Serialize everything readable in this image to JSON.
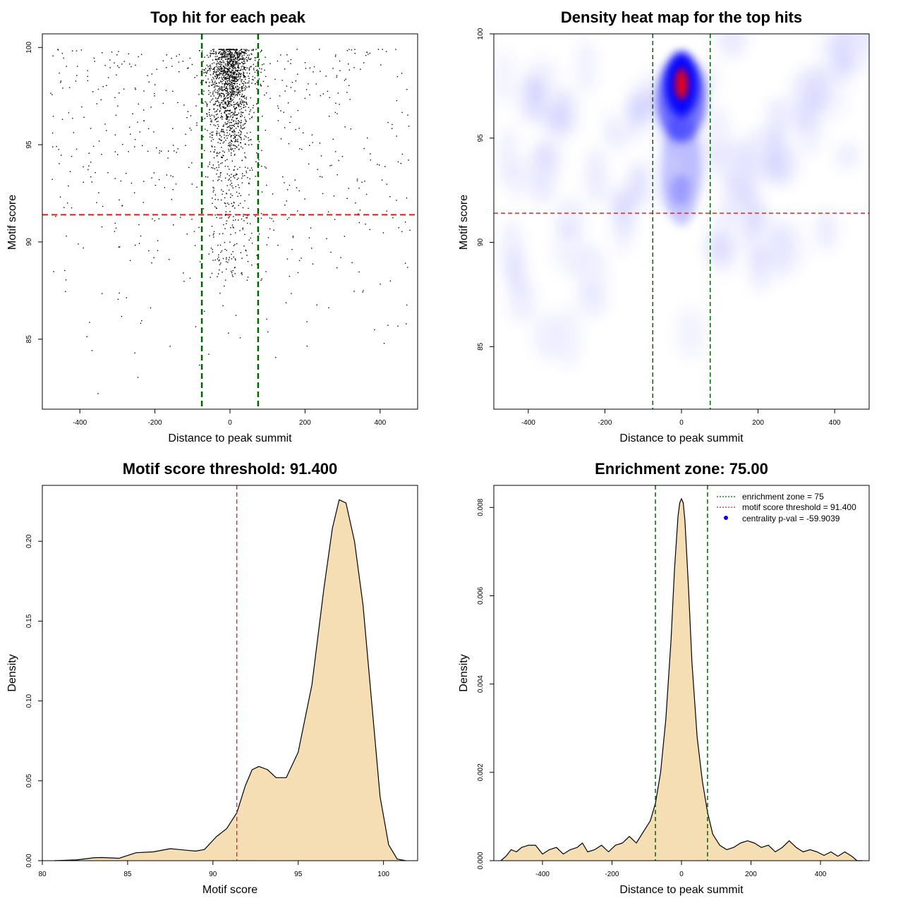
{
  "chart_data": [
    {
      "id": "scatter",
      "type": "scatter",
      "title": "Top hit for each peak",
      "xlabel": "Distance to peak summit",
      "ylabel": "Motif score",
      "xlim": [
        -500,
        500
      ],
      "ylim": [
        81.4,
        100.7
      ],
      "xticks": [
        -400,
        -200,
        0,
        200,
        400
      ],
      "yticks": [
        85,
        90,
        95,
        100
      ],
      "xtick_labels": [
        "-400",
        "-200",
        "0",
        "200",
        "400"
      ],
      "ytick_labels": [
        "85",
        "90",
        "95",
        "100"
      ],
      "threshold_y": 91.4,
      "zone_x": [
        -75,
        75
      ],
      "point_count": 2200,
      "point_distribution": "dense cluster centered near x=0 (|x|<75) with scores 88-100, sparse uniform background across x from -500 to 500",
      "colors": {
        "points": "#000000",
        "threshold": "#e41a1c",
        "zone": "#006400"
      },
      "grid": false
    },
    {
      "id": "heatmap",
      "type": "heatmap",
      "title": "Density heat map for the top hits",
      "xlabel": "Distance to peak summit",
      "ylabel": "Motif score",
      "xlim": [
        -490,
        490
      ],
      "ylim": [
        82,
        100
      ],
      "xticks": [
        -400,
        -200,
        0,
        200,
        400
      ],
      "yticks": [
        85,
        90,
        95,
        100
      ],
      "xtick_labels": [
        "-400",
        "-200",
        "0",
        "200",
        "400"
      ],
      "ytick_labels": [
        "85",
        "90",
        "95",
        "100"
      ],
      "threshold_y": 91.4,
      "zone_x": [
        -75,
        75
      ],
      "hotspot": {
        "x": 0,
        "y": 97.6
      },
      "colormap": [
        "#ffffff",
        "#0000ff",
        "#ff0000"
      ],
      "colors": {
        "threshold": "#e41a1c",
        "zone": "#006400"
      },
      "grid": false
    },
    {
      "id": "score-density",
      "type": "area",
      "title": "Motif score threshold: 91.400",
      "xlabel": "Motif score",
      "ylabel": "Density",
      "xlim": [
        80,
        102
      ],
      "ylim": [
        0,
        0.235
      ],
      "xticks": [
        80,
        85,
        90,
        95,
        100
      ],
      "yticks": [
        0,
        0.05,
        0.1,
        0.15,
        0.2
      ],
      "xtick_labels": [
        "80",
        "85",
        "90",
        "95",
        "100"
      ],
      "ytick_labels": [
        "0.00",
        "0.05",
        "0.10",
        "0.15",
        "0.20"
      ],
      "x": [
        80.7,
        82,
        83,
        83.5,
        84.5,
        85.5,
        86.5,
        87.5,
        88.5,
        89,
        89.5,
        90.2,
        90.8,
        91.4,
        91.9,
        92.3,
        92.7,
        93.2,
        93.7,
        94.3,
        95,
        95.8,
        96.5,
        97,
        97.4,
        97.8,
        98.3,
        98.8,
        99.3,
        99.8,
        100.3,
        100.8,
        101.3
      ],
      "values": [
        0,
        0.0005,
        0.0018,
        0.002,
        0.0015,
        0.005,
        0.0055,
        0.0075,
        0.0065,
        0.006,
        0.007,
        0.015,
        0.02,
        0.03,
        0.047,
        0.057,
        0.059,
        0.057,
        0.052,
        0.052,
        0.068,
        0.11,
        0.17,
        0.208,
        0.226,
        0.224,
        0.2,
        0.16,
        0.1,
        0.04,
        0.01,
        0.001,
        0
      ],
      "threshold_x": 91.4,
      "colors": {
        "fill": "#f5deb3",
        "line": "#000000",
        "threshold": "#e41a1c"
      },
      "grid": false
    },
    {
      "id": "distance-density",
      "type": "area",
      "title": "Enrichment zone: 75.00",
      "xlabel": "Distance to peak summit",
      "ylabel": "Density",
      "xlim": [
        -540,
        540
      ],
      "ylim": [
        0,
        0.0085
      ],
      "xticks": [
        -400,
        -200,
        0,
        200,
        400
      ],
      "yticks": [
        0,
        0.002,
        0.004,
        0.006,
        0.008
      ],
      "xtick_labels": [
        "-400",
        "-200",
        "0",
        "200",
        "400"
      ],
      "ytick_labels": [
        "0.000",
        "0.002",
        "0.004",
        "0.006",
        "0.008"
      ],
      "x": [
        -520,
        -505,
        -490,
        -475,
        -460,
        -440,
        -420,
        -400,
        -380,
        -360,
        -340,
        -320,
        -300,
        -285,
        -270,
        -250,
        -230,
        -210,
        -190,
        -170,
        -150,
        -130,
        -110,
        -90,
        -75,
        -60,
        -45,
        -30,
        -20,
        -10,
        -5,
        0,
        5,
        10,
        20,
        30,
        45,
        60,
        75,
        90,
        110,
        130,
        150,
        170,
        190,
        210,
        230,
        250,
        270,
        290,
        310,
        330,
        350,
        370,
        390,
        410,
        430,
        450,
        470,
        490,
        505,
        520
      ],
      "values": [
        0,
        0.0001,
        0.00025,
        0.0002,
        0.0003,
        0.00035,
        0.00035,
        0.00015,
        0.00025,
        0.0003,
        0.00015,
        0.00025,
        0.0003,
        0.0004,
        0.0002,
        0.00025,
        0.00035,
        0.0002,
        0.00035,
        0.0004,
        0.00055,
        0.0004,
        0.00065,
        0.0009,
        0.0013,
        0.002,
        0.0032,
        0.005,
        0.0066,
        0.0078,
        0.0081,
        0.0082,
        0.0081,
        0.0077,
        0.0062,
        0.0045,
        0.0028,
        0.0018,
        0.0011,
        0.0006,
        0.00035,
        0.00025,
        0.0003,
        0.0004,
        0.00045,
        0.0004,
        0.0003,
        0.00035,
        0.0002,
        0.0003,
        0.00045,
        0.0003,
        0.0002,
        0.00025,
        0.0002,
        0.00012,
        0.0002,
        0.0001,
        0.0002,
        0.0001,
        0,
        0
      ],
      "zone_x": [
        -75,
        75
      ],
      "legend": [
        {
          "label": "enrichment zone = 75",
          "style": "dotted",
          "color": "#006400"
        },
        {
          "label": "motif score threshold = 91.400",
          "style": "dotted",
          "color": "#e41a1c"
        },
        {
          "label": "centrality p-val = -59.9039",
          "style": "point",
          "color": "#0000ff"
        }
      ],
      "legend_position": "top-right",
      "colors": {
        "fill": "#f5deb3",
        "line": "#000000",
        "zone": "#006400"
      },
      "grid": false
    }
  ]
}
